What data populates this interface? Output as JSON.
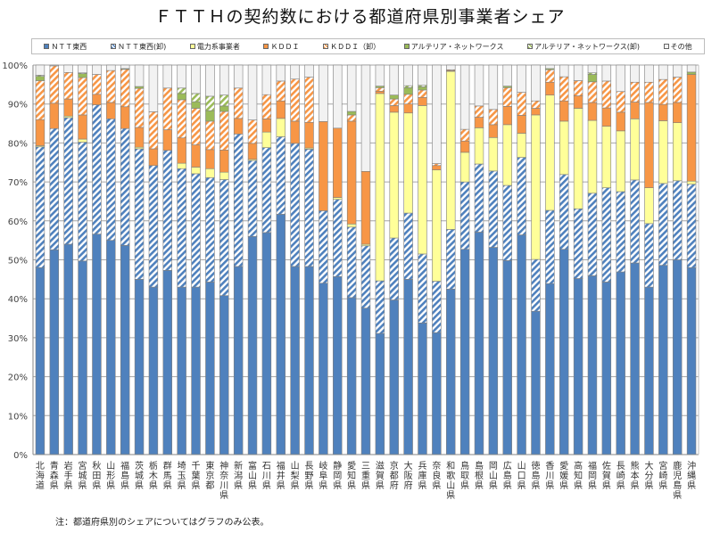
{
  "title": "ＦＴＴＨの契約数における都道府県別事業者シェア",
  "note": "注：都道府県別のシェアについてはグラフのみ公表。",
  "chart_data": {
    "type": "bar",
    "stacked": true,
    "title": "ＦＴＴＨの契約数における都道府県別事業者シェア",
    "xlabel": "",
    "ylabel": "",
    "ylim": [
      0,
      100
    ],
    "yticks": [
      "0%",
      "10%",
      "20%",
      "30%",
      "40%",
      "50%",
      "60%",
      "70%",
      "80%",
      "90%",
      "100%"
    ],
    "grid": true,
    "legend_position": "top",
    "categories": [
      "北海道",
      "青森県",
      "岩手県",
      "宮城県",
      "秋田県",
      "山形県",
      "福島県",
      "茨城県",
      "栃木県",
      "群馬県",
      "埼玉県",
      "千葉県",
      "東京都",
      "神奈川県",
      "新潟県",
      "富山県",
      "石川県",
      "福井県",
      "山梨県",
      "長野県",
      "岐阜県",
      "静岡県",
      "愛知県",
      "三重県",
      "滋賀県",
      "京都府",
      "大阪府",
      "兵庫県",
      "奈良県",
      "和歌山県",
      "鳥取県",
      "島根県",
      "岡山県",
      "広島県",
      "山口県",
      "徳島県",
      "香川県",
      "愛媛県",
      "高知県",
      "福岡県",
      "佐賀県",
      "長崎県",
      "熊本県",
      "大分県",
      "宮崎県",
      "鹿児島県",
      "沖縄県"
    ],
    "series": [
      {
        "name": "ＮＴＴ東西",
        "color": "#4f81bd",
        "pattern": "solid",
        "values": [
          48.0,
          52.6,
          54.0,
          49.7,
          56.6,
          55.0,
          53.7,
          45.0,
          43.0,
          47.3,
          43.0,
          43.0,
          44.3,
          40.8,
          48.3,
          56.0,
          57.0,
          61.7,
          48.3,
          48.3,
          44.0,
          45.7,
          40.3,
          37.6,
          31.1,
          39.7,
          45.0,
          33.8,
          31.3,
          42.5,
          52.7,
          57.1,
          53.2,
          49.8,
          56.4,
          36.8,
          43.9,
          52.7,
          45.2,
          45.9,
          44.3,
          46.9,
          49.2,
          43.0,
          48.6,
          50.0,
          48.0
        ]
      },
      {
        "name": "ＮＴＴ東西(卸)",
        "color": "#4f81bd",
        "pattern": "hatch",
        "values": [
          31.0,
          31.1,
          32.5,
          30.5,
          33.2,
          31.2,
          30.0,
          33.5,
          31.2,
          30.8,
          30.4,
          29.1,
          26.8,
          29.8,
          34.0,
          19.5,
          21.8,
          19.9,
          31.6,
          30.1,
          18.6,
          19.8,
          18.1,
          16.0,
          13.5,
          15.9,
          17.0,
          17.7,
          13.2,
          15.3,
          17.3,
          17.5,
          19.6,
          19.3,
          19.9,
          13.3,
          18.8,
          19.2,
          17.9,
          21.2,
          24.2,
          20.6,
          21.3,
          16.3,
          21.0,
          20.3,
          21.4
        ]
      },
      {
        "name": "電力系事業者",
        "color": "#ffff99",
        "pattern": "solid",
        "values": [
          0.3,
          0,
          0.4,
          0.8,
          0,
          0,
          0,
          0.4,
          0,
          0,
          1.4,
          1.7,
          2.3,
          1.9,
          0,
          0.3,
          4.0,
          4.7,
          0,
          0.3,
          0,
          0.5,
          0.8,
          0.4,
          48.1,
          32.3,
          25.7,
          38.1,
          28.6,
          40.6,
          7.6,
          9.3,
          8.6,
          15.6,
          6.2,
          37.1,
          29.6,
          13.7,
          25.8,
          18.7,
          15.8,
          15.6,
          15.7,
          9.2,
          16.1,
          14.9,
          0.8
        ]
      },
      {
        "name": "ＫＤＤＩ",
        "color": "#f79646",
        "pattern": "solid",
        "values": [
          6.7,
          6.5,
          4.4,
          6.2,
          2.7,
          4.2,
          5.6,
          5.1,
          4.3,
          5.3,
          6.5,
          5.7,
          4.9,
          5.7,
          4.0,
          4.1,
          3.4,
          4.5,
          5.7,
          6.6,
          22.9,
          17.8,
          26.4,
          18.7,
          0.6,
          1.7,
          2.3,
          2.1,
          1.1,
          0.2,
          2.9,
          2.7,
          3.3,
          4.7,
          4.6,
          1.7,
          3.3,
          5.2,
          3.2,
          4.6,
          4.7,
          4.8,
          4.3,
          21.9,
          4.2,
          5.2,
          27.4
        ]
      },
      {
        "name": "ＫＤＤＩ（卸）",
        "color": "#f79646",
        "pattern": "hatch",
        "values": [
          10.0,
          9.6,
          6.8,
          9.6,
          5.1,
          8.2,
          9.6,
          10.0,
          9.5,
          10.7,
          9.8,
          9.4,
          7.3,
          9.9,
          7.8,
          6.0,
          6.2,
          5.1,
          10.8,
          11.6,
          0,
          0,
          1.6,
          0,
          0.9,
          1.7,
          2.5,
          1.9,
          0.5,
          0.2,
          3.0,
          2.9,
          3.9,
          4.8,
          5.9,
          1.9,
          3.2,
          6.2,
          3.9,
          5.3,
          6.9,
          5.3,
          5.1,
          5.2,
          6.4,
          6.5,
          0
        ]
      },
      {
        "name": "アルテリア・ネットワークス",
        "color": "#9bbb59",
        "pattern": "solid",
        "values": [
          1.1,
          0,
          0,
          1.0,
          0,
          0,
          0.2,
          0.5,
          0,
          0,
          1.6,
          1.7,
          2.7,
          1.4,
          0,
          0,
          0,
          0,
          0,
          0,
          0,
          0,
          0.9,
          0,
          0.4,
          1.0,
          1.7,
          0.8,
          0,
          0,
          0,
          0,
          0,
          0.4,
          0,
          0,
          0.3,
          0,
          0,
          1.9,
          0,
          0,
          0,
          0,
          0,
          0,
          0.6
        ]
      },
      {
        "name": "アルテリア・ネットワークス(卸)",
        "color": "#9bbb59",
        "pattern": "hatch",
        "values": [
          0.3,
          0,
          0,
          0.2,
          0,
          0,
          0,
          0,
          0,
          0,
          1.4,
          2.1,
          3.7,
          2.8,
          0,
          0,
          0,
          0,
          0,
          0,
          0,
          0,
          0,
          0,
          0,
          0,
          0.5,
          0.4,
          0,
          0,
          0,
          0,
          0,
          0,
          0,
          0,
          0,
          0,
          0,
          0.4,
          0,
          0,
          0,
          0,
          0,
          0,
          0
        ]
      },
      {
        "name": "その他",
        "color": "#f2f2f2",
        "pattern": "solid",
        "values": [
          2.6,
          0.2,
          1.9,
          2.0,
          2.4,
          1.4,
          0.9,
          5.5,
          12.0,
          5.9,
          5.9,
          7.3,
          8.0,
          7.7,
          5.9,
          14.1,
          7.6,
          4.1,
          3.6,
          3.1,
          14.5,
          16.2,
          11.9,
          27.3,
          5.4,
          7.7,
          5.3,
          5.2,
          25.3,
          1.2,
          16.5,
          10.5,
          11.4,
          5.4,
          7.0,
          9.2,
          0.9,
          3.0,
          4.0,
          2.0,
          4.1,
          6.8,
          4.4,
          4.4,
          3.7,
          3.1,
          1.8
        ]
      }
    ]
  }
}
